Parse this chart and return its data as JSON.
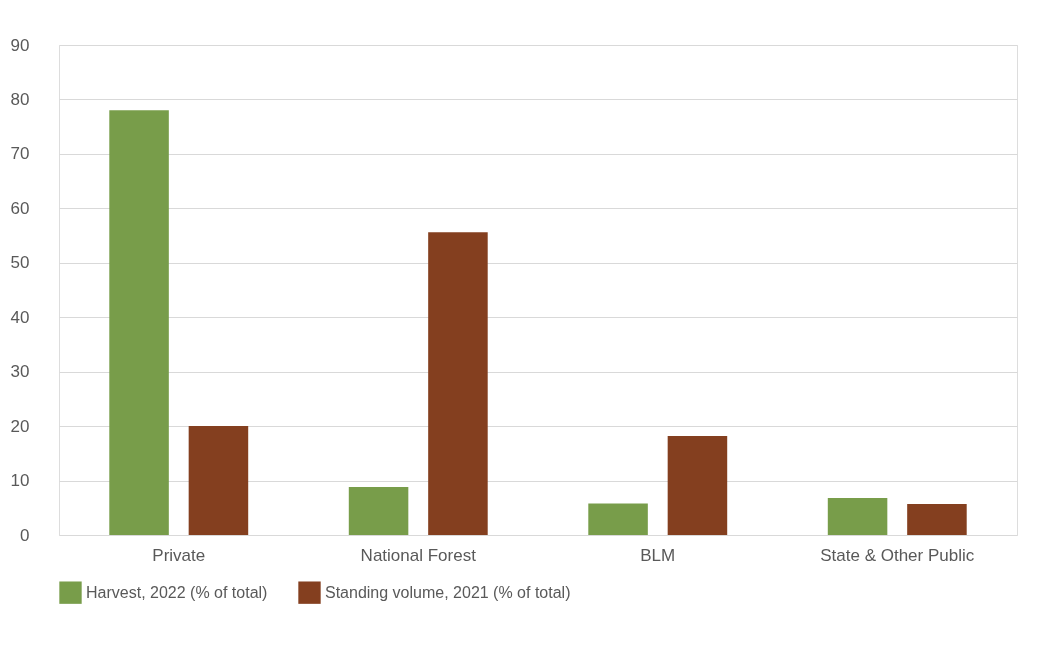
{
  "chart_data": {
    "type": "bar",
    "categories": [
      "Private",
      "National Forest",
      "BLM",
      "State & Other Public"
    ],
    "series": [
      {
        "name": "Harvest, 2022 (% of total)",
        "color": "#789d4a",
        "values": [
          78,
          8.8,
          5.8,
          6.8
        ]
      },
      {
        "name": "Standing volume, 2021 (% of total)",
        "color": "#843f1f",
        "values": [
          20,
          55.6,
          18.2,
          5.7
        ]
      }
    ],
    "ylim": [
      0,
      90
    ],
    "yticks": [
      0,
      10,
      20,
      30,
      40,
      50,
      60,
      70,
      80,
      90
    ],
    "grid": "y",
    "legend": "bottom"
  }
}
